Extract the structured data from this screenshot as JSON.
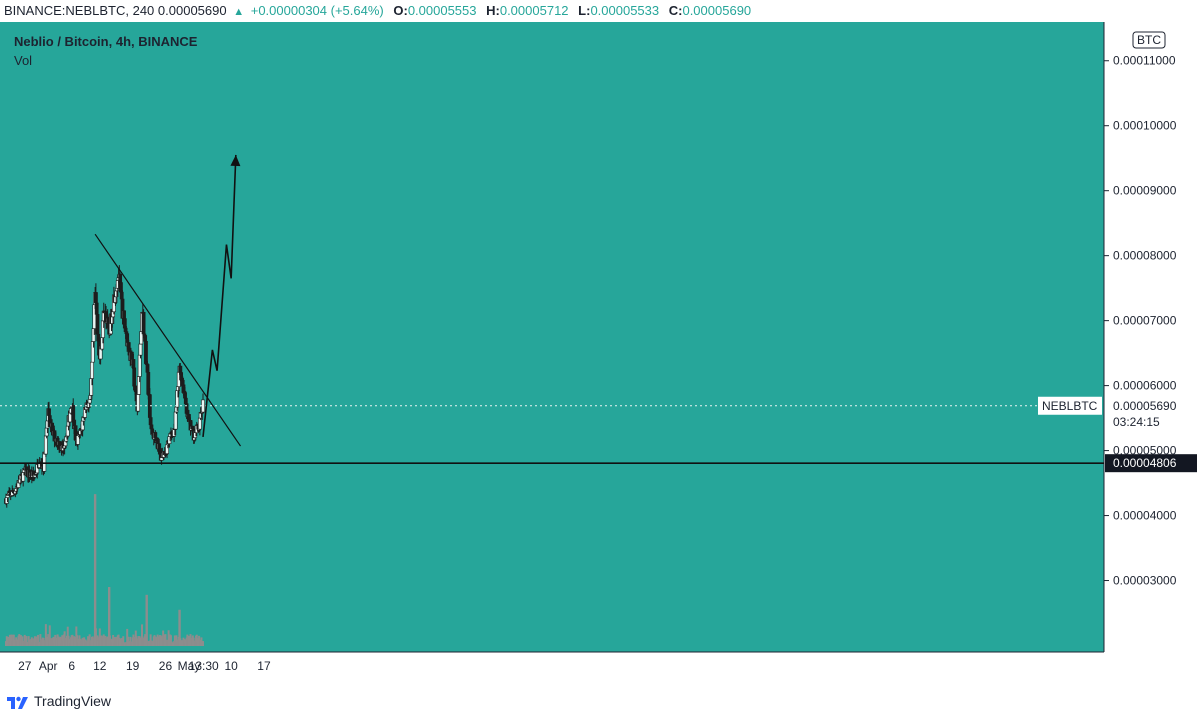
{
  "header": {
    "symbol": "BINANCE:NEBLBTC, 240",
    "last": "0.00005690",
    "change": "+0.00000304 (+5.64%)",
    "open_label": "O:",
    "open": "0.00005553",
    "high_label": "H:",
    "high": "0.00005712",
    "low_label": "L:",
    "low": "0.00005533",
    "close_label": "C:",
    "close": "0.00005690"
  },
  "legend": {
    "title": "Neblio / Bitcoin, 4h, BINANCE",
    "volume": "Vol"
  },
  "currency_badge": "BTC",
  "footer": {
    "brand": "TradingView"
  },
  "colors": {
    "background": "#26a69a",
    "candle": "#1d1d1d",
    "volume": "#8d8d8d",
    "text": "#1d2330",
    "axis_bg": "#ffffff",
    "accent": "#26a69a"
  },
  "chart_data": {
    "type": "candlestick",
    "title": "Neblio / Bitcoin, 4h, BINANCE",
    "y_ticks": [
      "0.00011000",
      "0.00010000",
      "0.00009000",
      "0.00008000",
      "0.00007000",
      "0.00006000",
      "0.00005000",
      "0.00004000",
      "0.00003000"
    ],
    "ylim": [
      1.9e-05,
      0.0001135
    ],
    "x_ticks": [
      "27",
      "Apr",
      "6",
      "12",
      "19",
      "26",
      "May",
      "10",
      "17"
    ],
    "cursor_time": "13:30",
    "grid": false,
    "price_series": [
      {
        "t": "Mar 23",
        "v": 4.26e-05
      },
      {
        "t": "Mar 25",
        "v": 4.4e-05
      },
      {
        "t": "Mar 27",
        "v": 4.68e-05
      },
      {
        "t": "Mar 29",
        "v": 4.6e-05
      },
      {
        "t": "Mar 30",
        "v": 4.8e-05
      },
      {
        "t": "Mar 31",
        "v": 4.75e-05
      },
      {
        "t": "Apr 1",
        "v": 5.6e-05
      },
      {
        "t": "Apr 2",
        "v": 5.25e-05
      },
      {
        "t": "Apr 3",
        "v": 5.15e-05
      },
      {
        "t": "Apr 4",
        "v": 5e-05
      },
      {
        "t": "Apr 5",
        "v": 5.3e-05
      },
      {
        "t": "Apr 6",
        "v": 5.75e-05
      },
      {
        "t": "Apr 7",
        "v": 5.1e-05
      },
      {
        "t": "Apr 8",
        "v": 5.3e-05
      },
      {
        "t": "Apr 9",
        "v": 5.7e-05
      },
      {
        "t": "Apr 10",
        "v": 5.75e-05
      },
      {
        "t": "Apr 11",
        "v": 7.4e-05
      },
      {
        "t": "Apr 12",
        "v": 6.4e-05
      },
      {
        "t": "Apr 13",
        "v": 7.2e-05
      },
      {
        "t": "Apr 14",
        "v": 6.8e-05
      },
      {
        "t": "Apr 15",
        "v": 7.35e-05
      },
      {
        "t": "Apr 16",
        "v": 7.7e-05
      },
      {
        "t": "Apr 17",
        "v": 7.05e-05
      },
      {
        "t": "Apr 18",
        "v": 6.65e-05
      },
      {
        "t": "Apr 19",
        "v": 6.3e-05
      },
      {
        "t": "Apr 20",
        "v": 5.6e-05
      },
      {
        "t": "Apr 21",
        "v": 7.2e-05
      },
      {
        "t": "Apr 22",
        "v": 6.3e-05
      },
      {
        "t": "Apr 23",
        "v": 5.25e-05
      },
      {
        "t": "Apr 24",
        "v": 5.2e-05
      },
      {
        "t": "Apr 25",
        "v": 4.9e-05
      },
      {
        "t": "Apr 26",
        "v": 5e-05
      },
      {
        "t": "Apr 27",
        "v": 5.2e-05
      },
      {
        "t": "Apr 28",
        "v": 5.35e-05
      },
      {
        "t": "Apr 29",
        "v": 6.3e-05
      },
      {
        "t": "Apr 30",
        "v": 5.9e-05
      },
      {
        "t": "May 1",
        "v": 5.4e-05
      },
      {
        "t": "May 2",
        "v": 5.25e-05
      },
      {
        "t": "May 3",
        "v": 5.35e-05
      },
      {
        "t": "May 4",
        "v": 5.69e-05
      }
    ],
    "volume_spikes": [
      {
        "t": "Apr 11",
        "v": 4.33e-05
      },
      {
        "t": "Apr 14",
        "v": 2.9e-05
      },
      {
        "t": "Apr 22",
        "v": 2.78e-05
      },
      {
        "t": "Apr 29",
        "v": 2.55e-05
      }
    ],
    "trendline": [
      {
        "t": "Apr 11",
        "v": 8.33e-05
      },
      {
        "t": "May 12",
        "v": 5.07e-05
      }
    ],
    "support_level": 4.806e-05,
    "projection": [
      {
        "t": "May 4",
        "v": 5.21e-05
      },
      {
        "t": "May 6",
        "v": 6.55e-05
      },
      {
        "t": "May 7",
        "v": 6.23e-05
      },
      {
        "t": "May 9",
        "v": 8.17e-05
      },
      {
        "t": "May 10",
        "v": 7.65e-05
      },
      {
        "t": "May 11",
        "v": 9.55e-05
      }
    ],
    "price_label": {
      "symbol": "NEBLBTC",
      "value": "0.00005690",
      "countdown": "03:24:15"
    },
    "support_label": "0.00004806"
  }
}
